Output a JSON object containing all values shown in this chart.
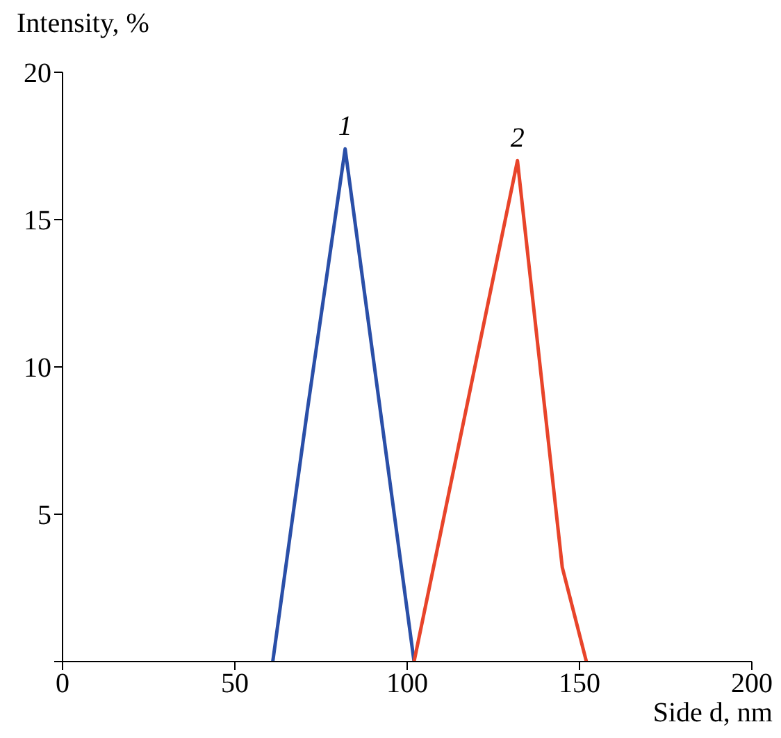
{
  "chart_data": {
    "type": "line",
    "xlabel": "Side d, nm",
    "ylabel": "Intensity, %",
    "xlim": [
      0,
      200
    ],
    "xticks": [
      0,
      50,
      100,
      150,
      200
    ],
    "ylim": [
      0,
      20
    ],
    "yticks": [
      {
        "value": 0,
        "label": null
      },
      5,
      10,
      15,
      20
    ],
    "grid": false,
    "legend": false,
    "marker": "none",
    "line_style": "solid",
    "series": [
      {
        "name": "1",
        "color": "#2a4fa8",
        "x": [
          61,
          71,
          82,
          102
        ],
        "values": [
          0,
          8.5,
          17.4,
          0
        ]
      },
      {
        "name": "2",
        "color": "#e8442a",
        "x": [
          102,
          132,
          145,
          152
        ],
        "values": [
          0,
          17.0,
          3.2,
          0
        ]
      }
    ]
  }
}
